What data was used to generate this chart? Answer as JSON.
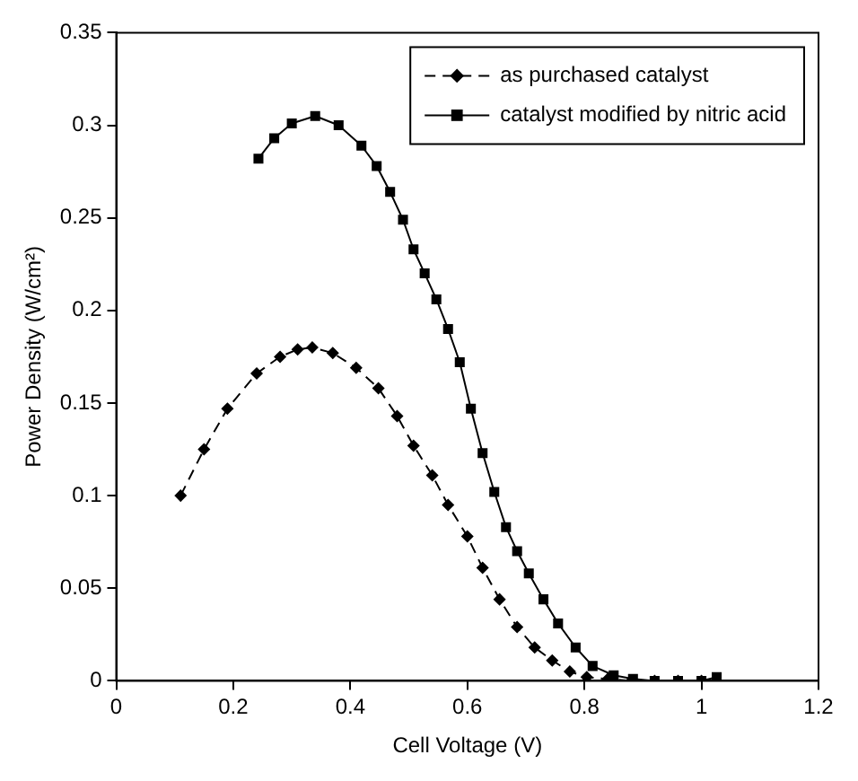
{
  "chart_data": {
    "type": "line",
    "xlabel": "Cell Voltage (V)",
    "ylabel": "Power Density (W/cm²)",
    "xlim": [
      0,
      1.2
    ],
    "xticks": [
      0,
      0.2,
      0.4,
      0.6,
      0.8,
      1,
      1.2
    ],
    "ylim": [
      0,
      0.35
    ],
    "yticks": [
      0,
      0.05,
      0.1,
      0.15,
      0.2,
      0.25,
      0.3,
      0.35
    ],
    "grid": false,
    "legend": "top right",
    "series": [
      {
        "name": "as purchased catalyst",
        "color": "#000000",
        "marker": "diamond",
        "line_style": "dashed",
        "x": [
          0.11,
          0.15,
          0.19,
          0.24,
          0.28,
          0.31,
          0.335,
          0.37,
          0.41,
          0.448,
          0.48,
          0.508,
          0.54,
          0.567,
          0.6,
          0.626,
          0.655,
          0.685,
          0.715,
          0.745,
          0.775,
          0.804,
          0.84,
          0.88,
          0.92,
          0.96,
          1.0
        ],
        "values": [
          0.1,
          0.125,
          0.147,
          0.166,
          0.175,
          0.179,
          0.18,
          0.177,
          0.169,
          0.158,
          0.143,
          0.127,
          0.111,
          0.095,
          0.078,
          0.061,
          0.044,
          0.029,
          0.018,
          0.011,
          0.005,
          0.002,
          0.001,
          0,
          0,
          0,
          0
        ]
      },
      {
        "name": "catalyst modified by nitric acid",
        "color": "#000000",
        "marker": "square",
        "line_style": "solid",
        "x": [
          0.243,
          0.27,
          0.3,
          0.34,
          0.38,
          0.419,
          0.445,
          0.468,
          0.49,
          0.508,
          0.527,
          0.547,
          0.567,
          0.587,
          0.606,
          0.626,
          0.646,
          0.666,
          0.685,
          0.705,
          0.73,
          0.755,
          0.785,
          0.814,
          0.85,
          0.883,
          0.92,
          0.96,
          1.0,
          1.026
        ],
        "values": [
          0.282,
          0.293,
          0.301,
          0.305,
          0.3,
          0.289,
          0.278,
          0.264,
          0.249,
          0.233,
          0.22,
          0.206,
          0.19,
          0.172,
          0.147,
          0.123,
          0.102,
          0.083,
          0.07,
          0.058,
          0.044,
          0.031,
          0.018,
          0.008,
          0.003,
          0.001,
          0,
          0,
          0,
          0.002
        ]
      }
    ]
  }
}
